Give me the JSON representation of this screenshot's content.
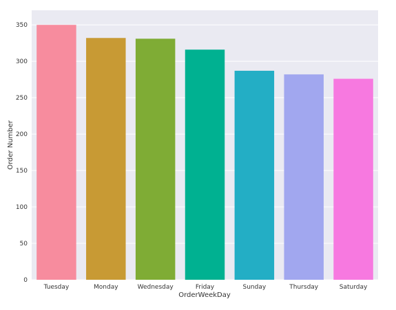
{
  "chart_data": {
    "type": "bar",
    "title": "",
    "xlabel": "OrderWeekDay",
    "ylabel": "Order Number",
    "categories": [
      "Tuesday",
      "Monday",
      "Wednesday",
      "Friday",
      "Sunday",
      "Thursday",
      "Saturday"
    ],
    "values": [
      350,
      332,
      331,
      316,
      287,
      282,
      276
    ],
    "colors": [
      "#f78c9e",
      "#c89a34",
      "#7fac35",
      "#00b191",
      "#23aec5",
      "#a1a7ef",
      "#f779e0"
    ],
    "ylim": [
      0,
      370
    ],
    "yticks": [
      0,
      50,
      100,
      150,
      200,
      250,
      300,
      350
    ],
    "grid": true,
    "legend": "none",
    "background": "#eaeaf2"
  }
}
